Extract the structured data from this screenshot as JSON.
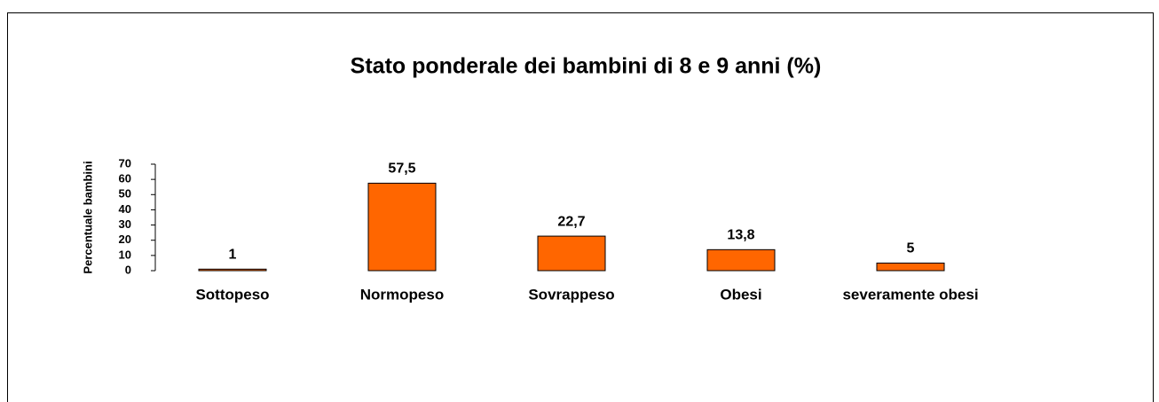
{
  "chart_data": {
    "type": "bar",
    "title": "Stato ponderale dei bambini di 8 e 9 anni  (%)",
    "y_label": "Percentuale bambini",
    "categories": [
      "Sottopeso",
      "Normopeso",
      "Sovrappeso",
      "Obesi",
      "severamente obesi"
    ],
    "values": [
      1,
      57.5,
      22.7,
      13.8,
      5
    ],
    "value_labels": [
      "1",
      "57,5",
      "22,7",
      "13,8",
      "5"
    ],
    "color": "#ff6600",
    "ylim": [
      0,
      70
    ],
    "yticks": [
      0,
      10,
      20,
      30,
      40,
      50,
      60,
      70
    ]
  }
}
